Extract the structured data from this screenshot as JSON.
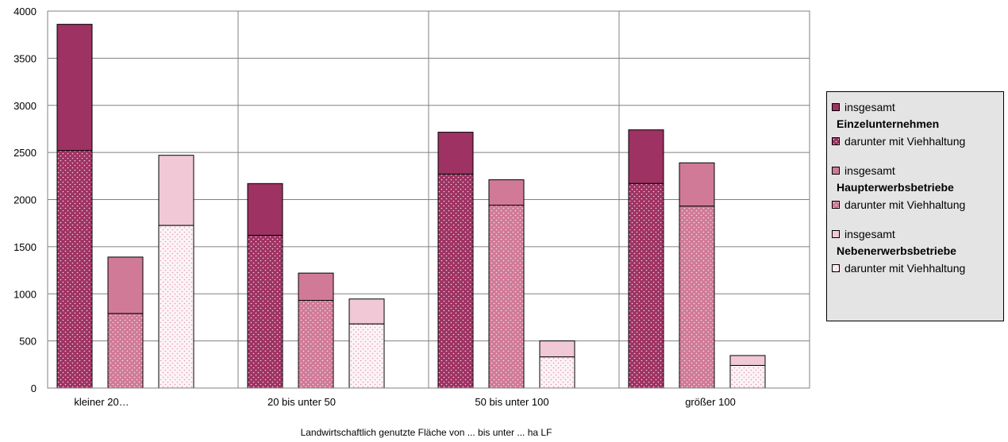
{
  "chart_data": {
    "type": "bar",
    "stacked": true,
    "grouped": true,
    "xlabel": "Landwirtschaftlich genutzte Fläche von ... bis unter ... ha LF",
    "ylabel": "",
    "ylim": [
      0,
      4000
    ],
    "yticks": [
      0,
      500,
      1000,
      1500,
      2000,
      2500,
      3000,
      3500,
      4000
    ],
    "grid": true,
    "legend_position": "right",
    "categories": [
      "kleiner 20…",
      "20 bis unter 50",
      "50 bis unter 100",
      "größer 100"
    ],
    "groups": [
      {
        "name": "Einzelunternehmen",
        "color_total": "#9e3262",
        "color_animals": "#9e3262",
        "insgesamt": [
          3860,
          2170,
          2715,
          2740
        ],
        "darunter_mit_viehhaltung": [
          2520,
          1620,
          2270,
          2170
        ]
      },
      {
        "name": "Haupterwerbsbetriebe",
        "color_total": "#d07a98",
        "color_animals": "#d07a98",
        "insgesamt": [
          1390,
          1220,
          2210,
          2390
        ],
        "darunter_mit_viehhaltung": [
          790,
          930,
          1940,
          1930
        ]
      },
      {
        "name": "Nebenerwerbsbetriebe",
        "color_total": "#f1c8d5",
        "color_animals": "#fbeaf0",
        "insgesamt": [
          2470,
          945,
          500,
          345
        ],
        "darunter_mit_viehhaltung": [
          1725,
          680,
          330,
          240
        ]
      }
    ]
  },
  "legend": {
    "groups": [
      {
        "total_label": "insgesamt",
        "group_label": "Einzelunternehmen",
        "animals_label": "darunter mit Viehhaltung"
      },
      {
        "total_label": "insgesamt",
        "group_label": "Haupterwerbsbetriebe",
        "animals_label": "darunter mit Viehhaltung"
      },
      {
        "total_label": "insgesamt",
        "group_label": "Nebenerwerbsbetriebe",
        "animals_label": "darunter mit Viehhaltung"
      }
    ]
  }
}
